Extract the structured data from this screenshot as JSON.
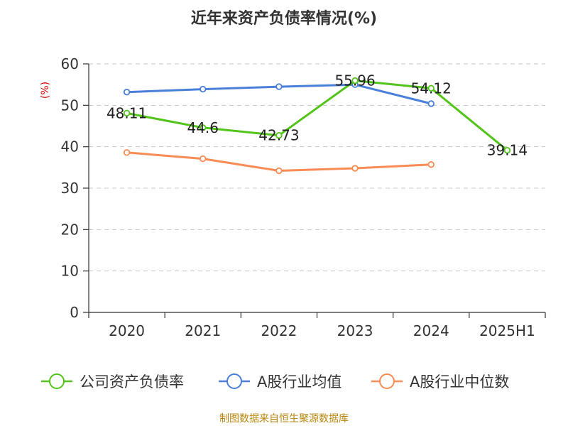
{
  "chart_data": {
    "type": "line",
    "title": "近年来资产负债率情况(%)",
    "ylabel": "(%)",
    "xlabel": "",
    "categories": [
      "2020",
      "2021",
      "2022",
      "2023",
      "2024",
      "2025H1"
    ],
    "ylim": [
      0,
      60
    ],
    "yticks": [
      0,
      10,
      20,
      30,
      40,
      50,
      60
    ],
    "grid": true,
    "legend_position": "bottom",
    "series": [
      {
        "name": "公司资产负债率",
        "color": "#52c41a",
        "values": [
          48.11,
          44.6,
          42.73,
          55.96,
          54.12,
          39.14
        ],
        "labels": [
          "48.11",
          "44.6",
          "42.73",
          "55.96",
          "54.12",
          "39.14"
        ],
        "show_labels": true
      },
      {
        "name": "A股行业均值",
        "color": "#4a7fd9",
        "values": [
          53.2,
          53.9,
          54.5,
          55.0,
          50.4,
          null
        ],
        "show_labels": false
      },
      {
        "name": "A股行业中位数",
        "color": "#f98c54",
        "values": [
          38.6,
          37.1,
          34.2,
          34.8,
          35.7,
          null
        ],
        "show_labels": false
      }
    ]
  },
  "source_text": "制图数据来自恒生聚源数据库"
}
